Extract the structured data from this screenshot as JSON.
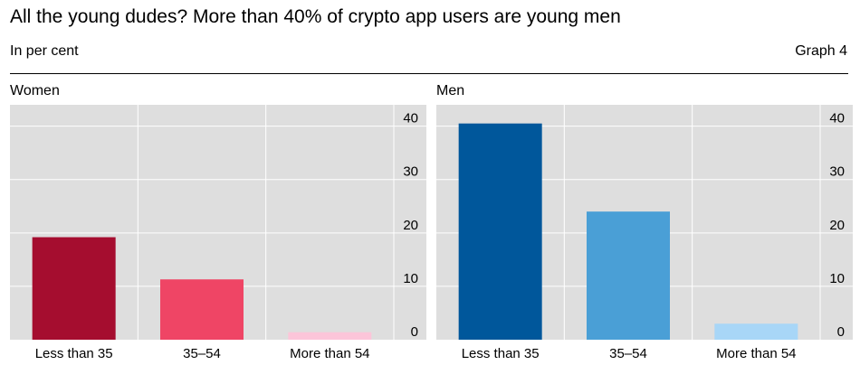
{
  "title": "All the young dudes? More than 40% of crypto app users are young men",
  "unit_label": "In per cent",
  "graph_label": "Graph 4",
  "chart_data": [
    {
      "type": "bar",
      "title": "Women",
      "categories": [
        "Less than 35",
        "35–54",
        "More than 54"
      ],
      "values": [
        19.2,
        11.3,
        1.4
      ],
      "colors": [
        "#a50d2f",
        "#ef4565",
        "#fcc5d9"
      ],
      "ylim": [
        0,
        44
      ],
      "yticks": [
        0,
        10,
        20,
        30,
        40
      ],
      "grid": true,
      "y_axis_side": "right"
    },
    {
      "type": "bar",
      "title": "Men",
      "categories": [
        "Less than 35",
        "35–54",
        "More than 54"
      ],
      "values": [
        40.5,
        24.0,
        3.0
      ],
      "colors": [
        "#00579b",
        "#4a9fd6",
        "#a8d6f7"
      ],
      "ylim": [
        0,
        44
      ],
      "yticks": [
        0,
        10,
        20,
        30,
        40
      ],
      "grid": true,
      "y_axis_side": "right"
    }
  ]
}
